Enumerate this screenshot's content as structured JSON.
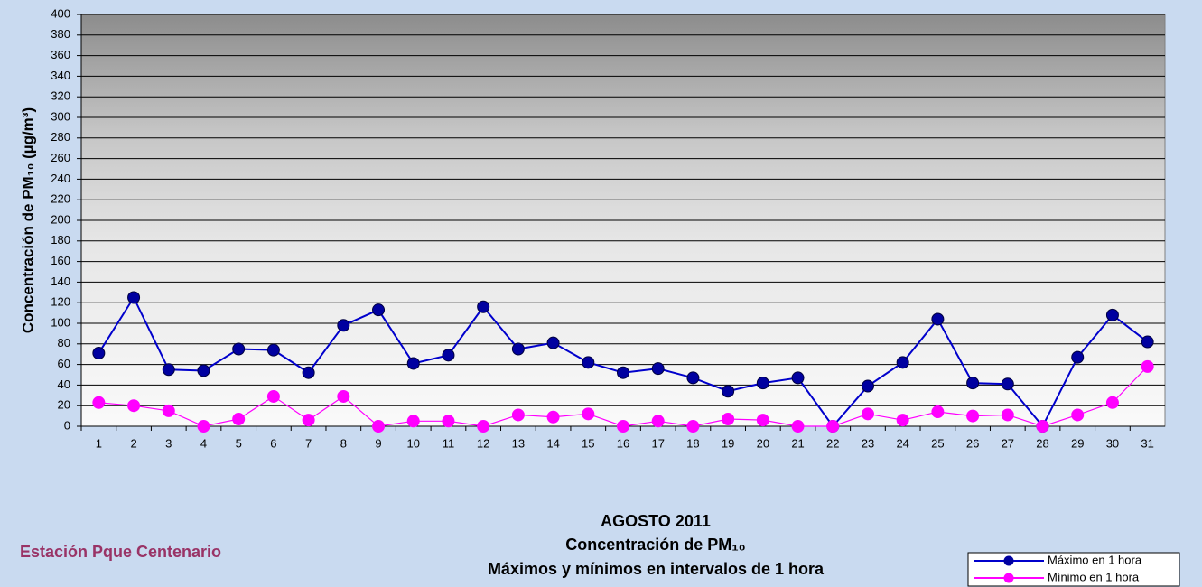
{
  "chart_data": {
    "type": "line",
    "title": [
      "AGOSTO 2011",
      "Concentración de PM₁₀",
      "Máximos y mínimos en intervalos de 1 hora"
    ],
    "station": "Estación Pque Centenario",
    "y_label": "Concentración de PM₁₀ (µg/m³)",
    "categories": [
      "1",
      "2",
      "3",
      "4",
      "5",
      "6",
      "7",
      "8",
      "9",
      "10",
      "11",
      "12",
      "13",
      "14",
      "15",
      "16",
      "17",
      "18",
      "19",
      "20",
      "21",
      "22",
      "23",
      "24",
      "25",
      "26",
      "27",
      "28",
      "29",
      "30",
      "31"
    ],
    "series": [
      {
        "name": "Máximo en 1 hora",
        "color": "#0000cc",
        "marker_color": "#0000a0",
        "values": [
          71,
          125,
          55,
          54,
          75,
          74,
          52,
          98,
          113,
          61,
          69,
          116,
          75,
          81,
          62,
          52,
          56,
          47,
          34,
          42,
          47,
          0,
          39,
          62,
          104,
          42,
          41,
          0,
          67,
          108,
          82
        ]
      },
      {
        "name": "Mínimo en 1 hora",
        "color": "#ff00ff",
        "marker_color": "#ff00ff",
        "values": [
          23,
          20,
          15,
          0,
          7,
          29,
          6,
          29,
          0,
          5,
          5,
          0,
          11,
          9,
          12,
          0,
          5,
          0,
          7,
          6,
          0,
          0,
          12,
          6,
          14,
          10,
          11,
          0,
          11,
          23,
          58
        ]
      }
    ],
    "ylim": [
      0,
      400
    ],
    "yticks": [
      0,
      20,
      40,
      60,
      80,
      100,
      120,
      140,
      160,
      180,
      200,
      220,
      240,
      260,
      280,
      300,
      320,
      340,
      360,
      380,
      400
    ],
    "grid": true,
    "legend": "bottom-right"
  }
}
